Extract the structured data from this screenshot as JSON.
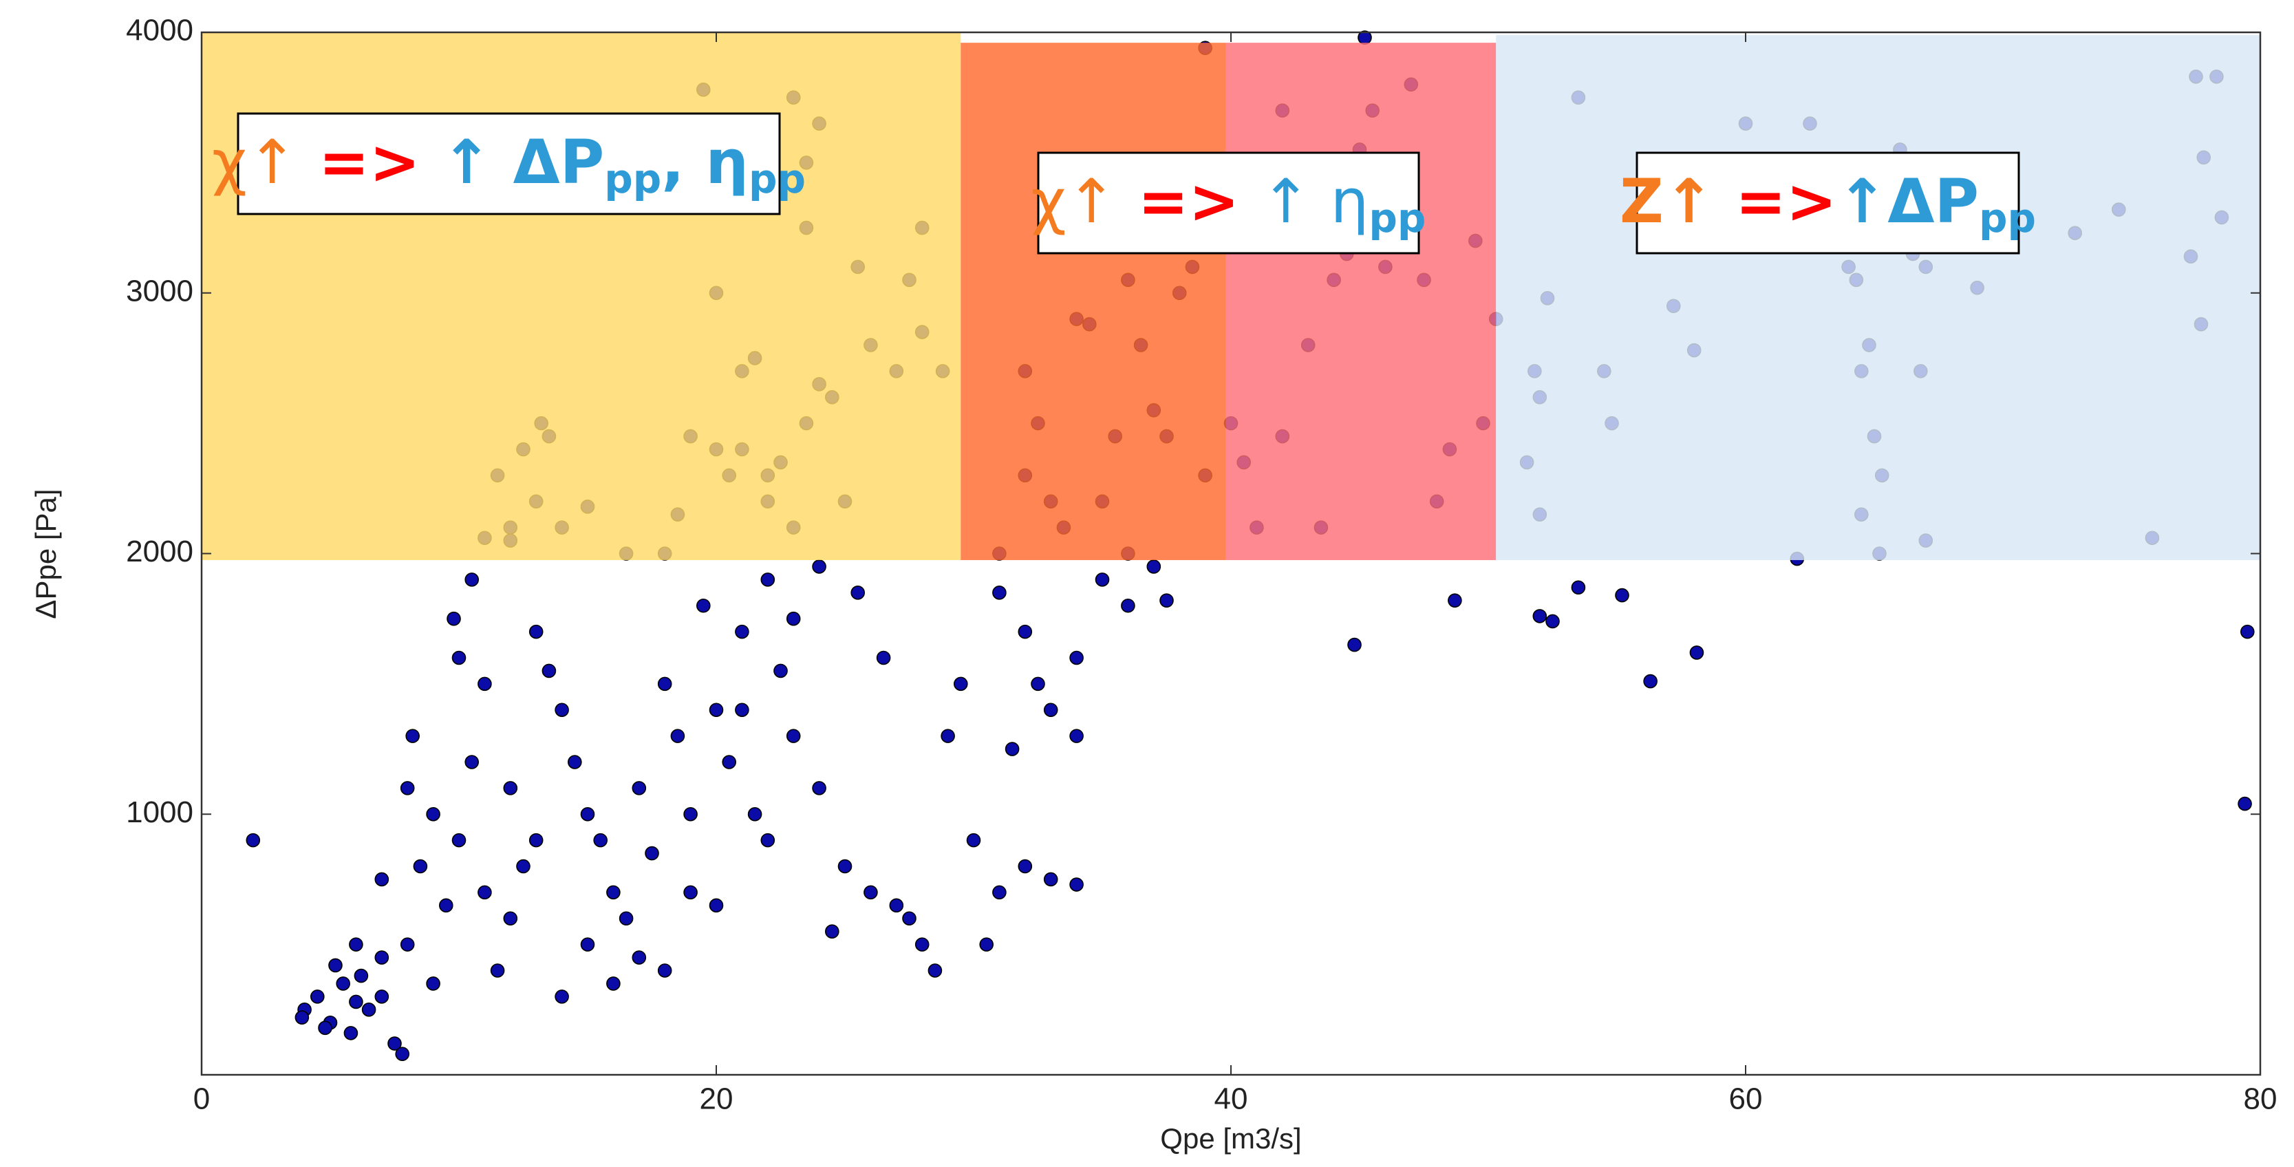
{
  "chart_data": {
    "type": "scatter",
    "xlabel": "Qpe [m3/s]",
    "ylabel": "ΔPpe [Pa]",
    "xlim": [
      0,
      80
    ],
    "ylim": [
      0,
      4000
    ],
    "xticks": [
      0,
      20,
      40,
      60,
      80
    ],
    "yticks": [
      1000,
      2000,
      3000,
      4000
    ],
    "color": "#0b0ba8",
    "x": [
      4,
      4.5,
      5,
      5.5,
      6,
      4.8,
      5.2,
      6.5,
      7,
      3.9,
      5.8,
      6.2,
      8,
      8.5,
      9,
      9.5,
      10,
      10.5,
      11,
      11.5,
      8.2,
      9,
      10,
      10.5,
      11,
      12,
      12.5,
      9.8,
      13,
      13.5,
      14,
      14.5,
      15,
      15.5,
      16,
      16.5,
      17,
      17.5,
      18,
      18.5,
      19,
      19.5,
      20,
      20.5,
      21,
      21.5,
      22,
      22.5,
      23,
      24,
      25,
      24.5,
      26,
      27,
      28,
      28.5,
      27.5,
      24,
      25.5,
      26.5,
      29,
      29.5,
      30,
      31,
      32,
      33,
      34,
      30.5,
      31,
      32,
      32.5,
      33,
      34,
      35,
      36,
      37,
      37.5,
      34,
      31.5,
      7,
      7.5,
      7.8,
      2,
      8,
      6,
      7,
      12,
      13,
      14,
      15,
      16,
      17,
      18,
      19,
      20,
      22,
      23,
      21,
      44.8,
      48.7,
      52,
      52.5,
      53.5,
      55.2,
      56.3,
      58.1,
      79.5,
      79.4,
      11.5,
      12,
      12.5,
      13,
      13.5,
      12,
      14,
      11,
      15,
      18,
      18.5,
      19,
      20,
      20.5,
      21,
      21.5,
      22,
      22.5,
      23,
      23.5,
      24,
      24.5,
      25,
      25.5,
      26,
      27,
      27.5,
      28,
      28,
      20,
      19.5,
      23,
      24,
      23.5,
      23.5,
      21,
      22,
      16.5,
      28.8,
      13.2,
      31,
      32,
      32.5,
      33,
      33.5,
      34,
      35,
      35.5,
      36,
      36.5,
      37,
      37.5,
      38,
      38.5,
      39,
      36,
      34.5,
      32,
      38,
      39,
      40,
      41,
      42,
      42,
      43,
      43.5,
      44,
      44.5,
      45,
      45.5,
      46,
      47,
      48,
      48.5,
      47.5,
      49.5,
      49.8,
      40.5,
      45.2,
      50.3,
      51.8,
      52,
      52,
      52.3,
      53.5,
      54.5,
      54.8,
      51.5,
      57.2,
      58,
      60,
      62,
      62.5,
      64,
      64.3,
      64.5,
      64.8,
      65,
      64.5,
      65.3,
      65.2,
      66,
      66.5,
      66.8,
      67,
      67,
      69,
      72.8,
      74.5,
      75.8,
      77.3,
      77.5,
      77.7,
      77.8,
      78.3,
      78.5
    ],
    "values": [
      250,
      300,
      200,
      350,
      280,
      180,
      420,
      250,
      300,
      220,
      160,
      380,
      500,
      800,
      1000,
      650,
      900,
      1200,
      700,
      400,
      1300,
      350,
      1600,
      1900,
      1500,
      1100,
      800,
      1750,
      1700,
      1550,
      1400,
      1200,
      1000,
      900,
      700,
      600,
      1100,
      850,
      1500,
      1300,
      1000,
      1800,
      1400,
      1200,
      1700,
      1000,
      900,
      1550,
      1300,
      1100,
      800,
      550,
      700,
      650,
      500,
      400,
      600,
      1950,
      1850,
      1600,
      1300,
      1500,
      900,
      700,
      800,
      750,
      730,
      500,
      1850,
      1700,
      1500,
      1400,
      1600,
      1900,
      1800,
      1950,
      1820,
      1300,
      1250,
      750,
      120,
      80,
      900,
      1100,
      500,
      450,
      600,
      900,
      300,
      500,
      350,
      450,
      400,
      700,
      650,
      1900,
      1750,
      1400,
      1650,
      1820,
      1760,
      1740,
      1870,
      1840,
      1510,
      1620,
      1700,
      1040,
      2300,
      2100,
      2400,
      2200,
      2450,
      2050,
      2100,
      2060,
      2180,
      2000,
      2150,
      2450,
      2400,
      2300,
      2700,
      2750,
      2200,
      2350,
      2100,
      2500,
      2650,
      2600,
      2200,
      3100,
      2800,
      2700,
      3050,
      3250,
      2850,
      3000,
      3780,
      3750,
      3650,
      3500,
      3250,
      2400,
      2300,
      2000,
      2700,
      2500,
      2000,
      2700,
      2500,
      2200,
      2100,
      2900,
      2200,
      2450,
      2000,
      2800,
      2550,
      2450,
      3000,
      3100,
      2300,
      3050,
      2880,
      2300,
      3500,
      3940,
      2500,
      2100,
      2450,
      3700,
      2800,
      2100,
      3050,
      3150,
      3550,
      3700,
      3100,
      3800,
      2200,
      2400,
      3050,
      3200,
      2500,
      2350,
      3980,
      2900,
      2700,
      2600,
      2150,
      2980,
      3750,
      2700,
      2500,
      2350,
      2950,
      2780,
      3650,
      1980,
      3650,
      3100,
      3050,
      2700,
      2800,
      2450,
      2150,
      2300,
      2000,
      3550,
      3150,
      2700,
      3100,
      2050,
      3020,
      3230,
      3320,
      2060,
      3140,
      3830,
      2880,
      3520,
      3830,
      3290
    ],
    "regions": [
      {
        "x": [
          0,
          29.5
        ],
        "y": [
          1975,
          4000
        ],
        "color": "#ffd966"
      },
      {
        "x": [
          29.5,
          39.8
        ],
        "y": [
          1975,
          3960
        ],
        "color": "#ff6a30"
      },
      {
        "x": [
          39.8,
          50.3
        ],
        "y": [
          1975,
          3960
        ],
        "color": "#ff6f78"
      },
      {
        "x": [
          50.3,
          80
        ],
        "y": [
          1975,
          3990
        ],
        "color": "#d8e7f5"
      }
    ],
    "annotations": [
      {
        "parts": [
          {
            "text": "χ↑",
            "color": "#f47b20"
          },
          {
            "text": " => ",
            "color": "#ff0000",
            "bold": true
          },
          {
            "text": "↑ ΔP",
            "color": "#2e9bd6",
            "bold": true
          },
          {
            "text": "pp",
            "color": "#2e9bd6",
            "bold": true,
            "sub": true
          },
          {
            "text": ", η",
            "color": "#2e9bd6",
            "bold": true
          },
          {
            "text": "pp",
            "color": "#2e9bd6",
            "bold": true,
            "sub": true
          }
        ]
      },
      {
        "parts": [
          {
            "text": "χ↑",
            "color": "#f47b20"
          },
          {
            "text": " => ",
            "color": "#ff0000",
            "bold": true
          },
          {
            "text": "↑ η",
            "color": "#2e9bd6"
          },
          {
            "text": "pp",
            "color": "#2e9bd6",
            "bold": true,
            "sub": true
          }
        ]
      },
      {
        "parts": [
          {
            "text": "Z↑",
            "color": "#f47b20",
            "bold": true
          },
          {
            "text": " =>",
            "color": "#ff0000",
            "bold": true
          },
          {
            "text": "↑ΔP",
            "color": "#2e9bd6",
            "bold": true
          },
          {
            "text": "pp",
            "color": "#2e9bd6",
            "bold": true,
            "sub": true
          }
        ]
      }
    ]
  }
}
